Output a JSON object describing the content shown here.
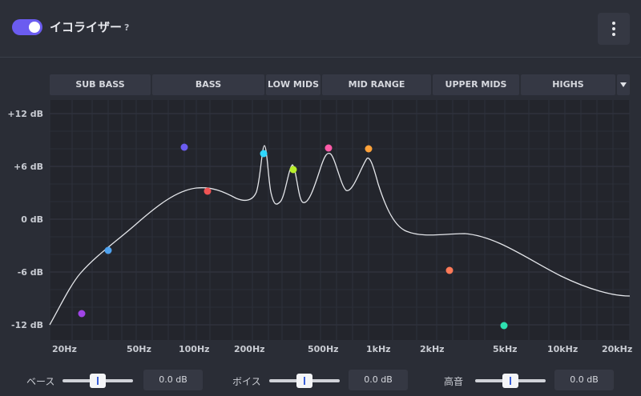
{
  "header": {
    "title": "イコライザー",
    "help": "?",
    "toggle_on": true,
    "menu_icon": "kebab-menu-icon"
  },
  "bands": [
    {
      "label": "SUB BASS"
    },
    {
      "label": "BASS"
    },
    {
      "label": "LOW MIDS"
    },
    {
      "label": "MID RANGE"
    },
    {
      "label": "UPPER MIDS"
    },
    {
      "label": "HIGHS"
    }
  ],
  "more_bands_icon": "caret-down-icon",
  "graph": {
    "y_labels": [
      "+12 dB",
      "+6 dB",
      "0 dB",
      "-6 dB",
      "-12 dB"
    ],
    "x_labels": [
      "20Hz",
      "50Hz",
      "100Hz",
      "200Hz",
      "500Hz",
      "1kHz",
      "2kHz",
      "5kHz",
      "10kHz",
      "20kHz"
    ],
    "accent": "#6b5cf0",
    "curve_color": "#e4e6ea",
    "points_color": [
      "#a044e6",
      "#4fa3f0",
      "#6b5cf0",
      "#f05454",
      "#2fd7ff",
      "#b8ee2a",
      "#ff5aa8",
      "#ffa23a",
      "#ff7a58",
      "#2ee0b0"
    ]
  },
  "sliders": [
    {
      "label": "ベース",
      "value": "0.0 dB",
      "position": 0.5
    },
    {
      "label": "ボイス",
      "value": "0.0 dB",
      "position": 0.5
    },
    {
      "label": "高音",
      "value": "0.0 dB",
      "position": 0.5
    }
  ]
}
